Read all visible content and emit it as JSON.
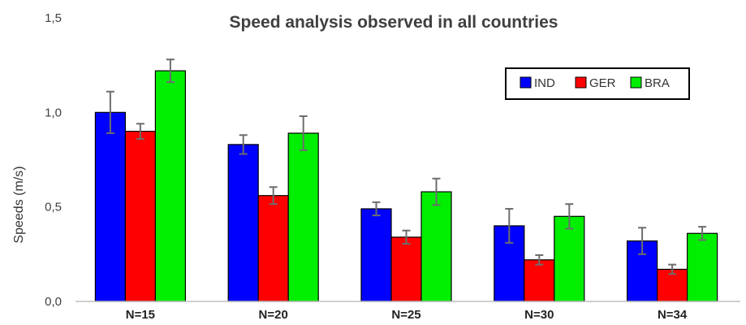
{
  "chart_data": {
    "type": "bar",
    "title": "Speed analysis observed in all countries",
    "xlabel": "",
    "ylabel": "Speeds (m/s)",
    "categories": [
      "N=15",
      "N=20",
      "N=25",
      "N=30",
      "N=34"
    ],
    "ylim": [
      0,
      1.5
    ],
    "yticks": [
      "0,0",
      "0,5",
      "1,0",
      "1,5"
    ],
    "ytick_values": [
      0,
      0.5,
      1.0,
      1.5
    ],
    "legend_position": "top-right",
    "grid": false,
    "series": [
      {
        "name": "IND",
        "color": "#0000ff",
        "values": [
          1.0,
          0.83,
          0.49,
          0.4,
          0.32
        ],
        "errors": [
          0.11,
          0.05,
          0.035,
          0.09,
          0.07
        ]
      },
      {
        "name": "GER",
        "color": "#ff0000",
        "values": [
          0.9,
          0.56,
          0.34,
          0.22,
          0.17
        ],
        "errors": [
          0.04,
          0.045,
          0.035,
          0.025,
          0.025
        ]
      },
      {
        "name": "BRA",
        "color": "#00ee00",
        "values": [
          1.22,
          0.89,
          0.58,
          0.45,
          0.36
        ],
        "errors": [
          0.06,
          0.09,
          0.07,
          0.065,
          0.035
        ]
      }
    ]
  }
}
